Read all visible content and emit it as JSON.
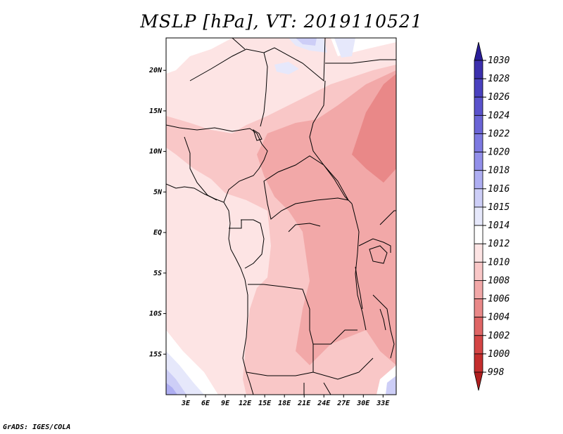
{
  "title": "MSLP [hPa], VT: 2019110521",
  "credit": "GrADS: IGES/COLA",
  "map": {
    "region": "Central Africa",
    "lon_range": [
      0,
      35
    ],
    "lat_range": [
      -20,
      24
    ],
    "lat_ticks": [
      {
        "value": 20,
        "label": "20N"
      },
      {
        "value": 15,
        "label": "15N"
      },
      {
        "value": 10,
        "label": "10N"
      },
      {
        "value": 5,
        "label": "5N"
      },
      {
        "value": 0,
        "label": "EQ"
      },
      {
        "value": -5,
        "label": "5S"
      },
      {
        "value": -10,
        "label": "10S"
      },
      {
        "value": -15,
        "label": "15S"
      }
    ],
    "lon_ticks": [
      {
        "value": 3,
        "label": "3E"
      },
      {
        "value": 6,
        "label": "6E"
      },
      {
        "value": 9,
        "label": "9E"
      },
      {
        "value": 12,
        "label": "12E"
      },
      {
        "value": 15,
        "label": "15E"
      },
      {
        "value": 18,
        "label": "18E"
      },
      {
        "value": 21,
        "label": "21E"
      },
      {
        "value": 24,
        "label": "24E"
      },
      {
        "value": 27,
        "label": "27E"
      },
      {
        "value": 30,
        "label": "30E"
      },
      {
        "value": 33,
        "label": "33E"
      }
    ]
  },
  "colorbar": {
    "labels": [
      "1030",
      "1028",
      "1026",
      "1024",
      "1022",
      "1020",
      "1018",
      "1016",
      "1015",
      "1014",
      "1012",
      "1010",
      "1008",
      "1006",
      "1004",
      "1002",
      "1000",
      "998"
    ],
    "colors": [
      "#2a1e99",
      "#3c30ad",
      "#4a41bf",
      "#5a52cc",
      "#6a64d6",
      "#7d79e1",
      "#928fea",
      "#aeaef2",
      "#cdcef7",
      "#e6e8fb",
      "#ffffff",
      "#fde4e4",
      "#f9c7c7",
      "#f2a8a8",
      "#e98888",
      "#df6565",
      "#d44545",
      "#c42d2d",
      "#b01e1e"
    ]
  }
}
